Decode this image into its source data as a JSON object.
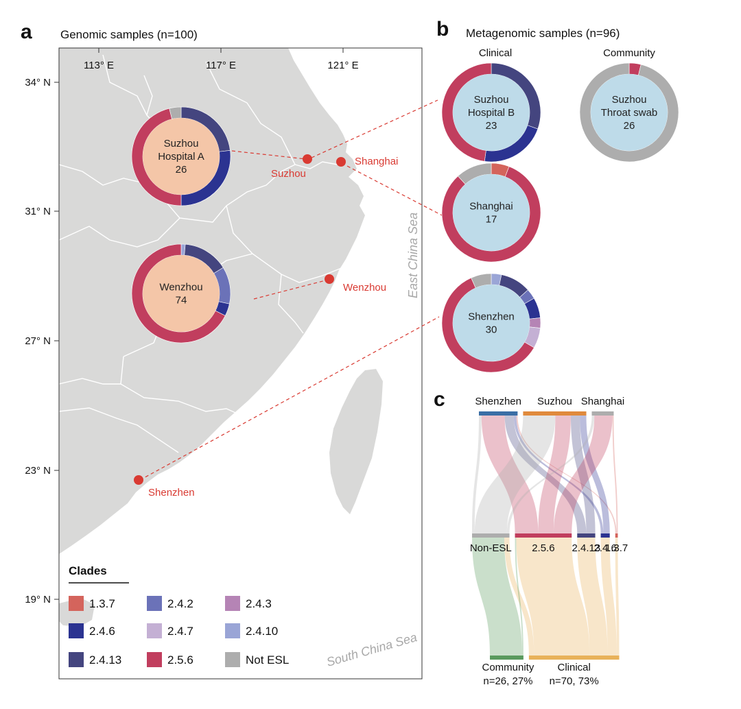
{
  "panels": {
    "a": "a",
    "b": "b",
    "c": "c"
  },
  "panel_a": {
    "title": "Genomic samples (n=100)",
    "lon_ticks": [
      "113° E",
      "117° E",
      "121° E"
    ],
    "lat_ticks": [
      "34° N",
      "31° N",
      "27° N",
      "23° N",
      "19° N"
    ],
    "cities": {
      "suzhou": "Suzhou",
      "shanghai": "Shanghai",
      "wenzhou": "Wenzhou",
      "shenzhen": "Shenzhen"
    },
    "seas": {
      "east": "East China Sea",
      "south": "South China Sea"
    },
    "legend_title": "Clades"
  },
  "panel_b": {
    "title": "Metagenomic samples (n=96)",
    "clinical_header": "Clinical",
    "community_header": "Community"
  },
  "clades": [
    {
      "name": "1.3.7",
      "color": "#d4645c"
    },
    {
      "name": "2.4.2",
      "color": "#6b72b8"
    },
    {
      "name": "2.4.3",
      "color": "#b584b5"
    },
    {
      "name": "2.4.6",
      "color": "#2b3391"
    },
    {
      "name": "2.4.7",
      "color": "#c4b0d4"
    },
    {
      "name": "2.4.10",
      "color": "#9aa5d6"
    },
    {
      "name": "2.4.13",
      "color": "#44457f"
    },
    {
      "name": "2.5.6",
      "color": "#c13e5e"
    },
    {
      "name": "Not ESL",
      "color": "#adadad"
    }
  ],
  "donuts": [
    {
      "id": "suzhou-hospital-a",
      "lines": [
        "Suzhou",
        "Hospital A",
        "26"
      ],
      "fill": "#f4c6a8",
      "segments": [
        {
          "clade": "2.4.13",
          "value": 6
        },
        {
          "clade": "2.4.6",
          "value": 7
        },
        {
          "clade": "2.5.6",
          "value": 12
        },
        {
          "clade": "Not ESL",
          "value": 1
        }
      ]
    },
    {
      "id": "wenzhou",
      "lines": [
        "Wenzhou",
        "74"
      ],
      "fill": "#f4c6a8",
      "segments": [
        {
          "clade": "2.4.10",
          "value": 1
        },
        {
          "clade": "2.4.13",
          "value": 11
        },
        {
          "clade": "2.4.2",
          "value": 9
        },
        {
          "clade": "2.4.6",
          "value": 3
        },
        {
          "clade": "2.5.6",
          "value": 50
        }
      ]
    },
    {
      "id": "suzhou-hospital-b",
      "lines": [
        "Suzhou",
        "Hospital B",
        "23"
      ],
      "fill": "#bedbe9",
      "segments": [
        {
          "clade": "2.4.13",
          "value": 7
        },
        {
          "clade": "2.4.6",
          "value": 5
        },
        {
          "clade": "2.5.6",
          "value": 11
        }
      ]
    },
    {
      "id": "suzhou-throat-swab",
      "lines": [
        "Suzhou",
        "Throat swab",
        "26"
      ],
      "fill": "#bedbe9",
      "segments": [
        {
          "clade": "2.5.6",
          "value": 1
        },
        {
          "clade": "Not ESL",
          "value": 25
        }
      ]
    },
    {
      "id": "shanghai",
      "lines": [
        "Shanghai",
        "17"
      ],
      "fill": "#bedbe9",
      "segments": [
        {
          "clade": "1.3.7",
          "value": 1
        },
        {
          "clade": "2.5.6",
          "value": 14
        },
        {
          "clade": "Not ESL",
          "value": 2
        }
      ]
    },
    {
      "id": "shenzhen",
      "lines": [
        "Shenzhen",
        "30"
      ],
      "fill": "#bedbe9",
      "segments": [
        {
          "clade": "2.4.10",
          "value": 1
        },
        {
          "clade": "2.4.13",
          "value": 3
        },
        {
          "clade": "2.4.2",
          "value": 1
        },
        {
          "clade": "2.4.6",
          "value": 2
        },
        {
          "clade": "2.4.3",
          "value": 1
        },
        {
          "clade": "2.4.7",
          "value": 2
        },
        {
          "clade": "2.5.6",
          "value": 18
        },
        {
          "clade": "Not ESL",
          "value": 2
        }
      ]
    }
  ],
  "chart_data": {
    "type": "sankey",
    "title": "",
    "top_nodes": [
      {
        "name": "Shenzhen",
        "color": "#3a6ea5"
      },
      {
        "name": "Suzhou",
        "color": "#e08a3c"
      },
      {
        "name": "Shanghai",
        "color": "#adadad"
      }
    ],
    "middle_nodes": [
      "Non-ESL",
      "2.5.6",
      "2.4.13",
      "2.4.6",
      "1.3.7"
    ],
    "bottom_nodes": [
      {
        "name": "Community",
        "detail": "n=26, 27%",
        "color": "#5a9a5e"
      },
      {
        "name": "Clinical",
        "detail": "n=70, 73%",
        "color": "#e8b25a"
      }
    ],
    "flows_top": [
      {
        "source": "Shenzhen",
        "target": "Non-ESL",
        "value": 2
      },
      {
        "source": "Shenzhen",
        "target": "2.5.6",
        "value": 18
      },
      {
        "source": "Shenzhen",
        "target": "2.4.13",
        "value": 7
      },
      {
        "source": "Shenzhen",
        "target": "2.4.6",
        "value": 2
      },
      {
        "source": "Shenzhen",
        "target": "1.3.7",
        "value": 1
      },
      {
        "source": "Suzhou",
        "target": "Non-ESL",
        "value": 25
      },
      {
        "source": "Suzhou",
        "target": "2.5.6",
        "value": 12
      },
      {
        "source": "Suzhou",
        "target": "2.4.13",
        "value": 7
      },
      {
        "source": "Suzhou",
        "target": "2.4.6",
        "value": 5
      },
      {
        "source": "Shanghai",
        "target": "Non-ESL",
        "value": 2
      },
      {
        "source": "Shanghai",
        "target": "2.5.6",
        "value": 14
      },
      {
        "source": "Shanghai",
        "target": "1.3.7",
        "value": 1
      }
    ],
    "flows_bottom": [
      {
        "source": "Non-ESL",
        "target": "Community",
        "value": 25
      },
      {
        "source": "Non-ESL",
        "target": "Clinical",
        "value": 4
      },
      {
        "source": "2.5.6",
        "target": "Community",
        "value": 1
      },
      {
        "source": "2.5.6",
        "target": "Clinical",
        "value": 43
      },
      {
        "source": "2.4.13",
        "target": "Clinical",
        "value": 14
      },
      {
        "source": "2.4.6",
        "target": "Clinical",
        "value": 7
      },
      {
        "source": "1.3.7",
        "target": "Clinical",
        "value": 2
      }
    ]
  }
}
